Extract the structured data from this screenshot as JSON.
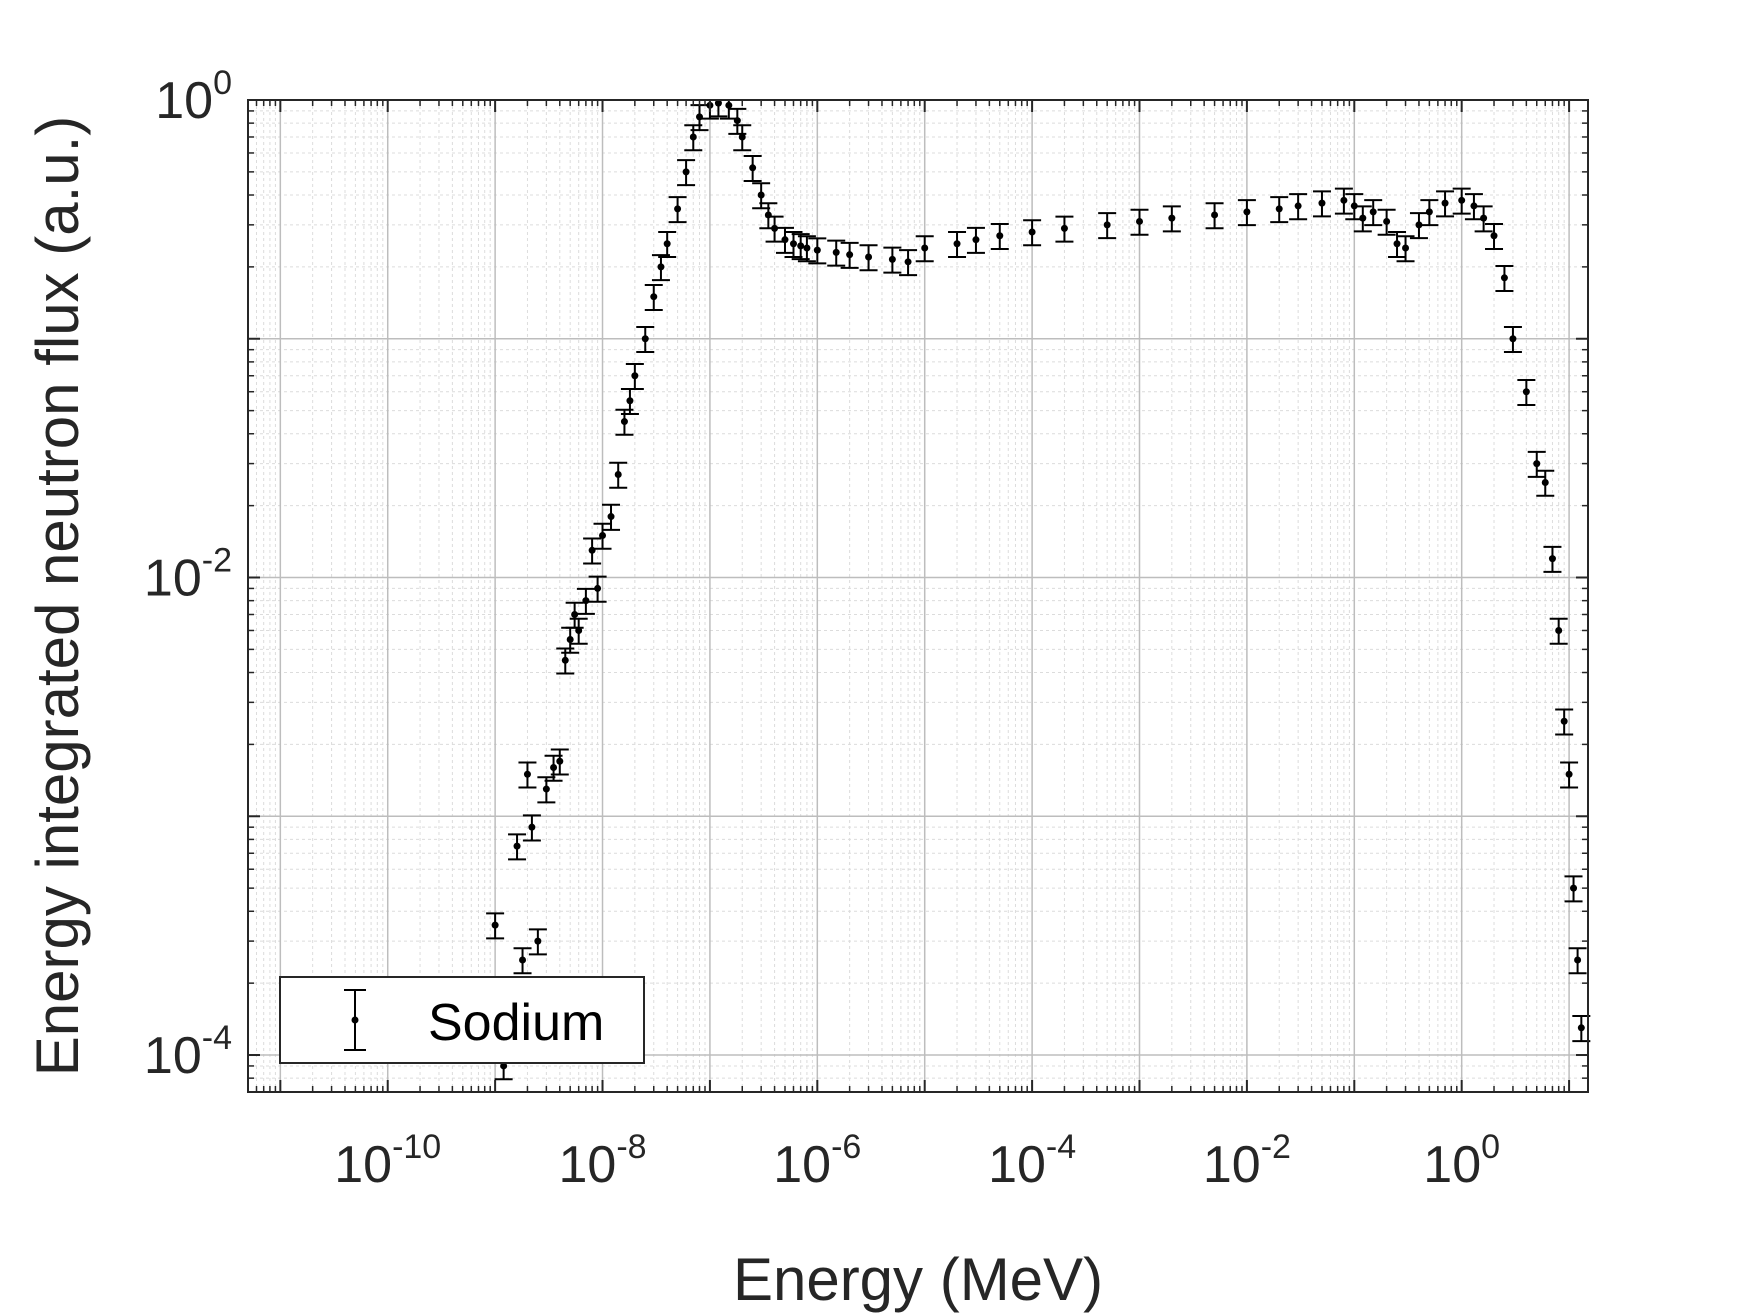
{
  "chart_data": {
    "type": "scatter",
    "xlabel": "Energy (MeV)",
    "ylabel": "Energy integrated neutron flux (a.u.)",
    "xscale": "log",
    "yscale": "log",
    "xlim": [
      5e-12,
      15
    ],
    "ylim": [
      7e-05,
      1
    ],
    "grid": true,
    "minor_grid": true,
    "legend_position": "bottom-left",
    "x_tick_labels": [
      {
        "base": "10",
        "exp": "-10",
        "value": 1e-10
      },
      {
        "base": "10",
        "exp": "-8",
        "value": 1e-08
      },
      {
        "base": "10",
        "exp": "-6",
        "value": 1e-06
      },
      {
        "base": "10",
        "exp": "-4",
        "value": 0.0001
      },
      {
        "base": "10",
        "exp": "-2",
        "value": 0.01
      },
      {
        "base": "10",
        "exp": "0",
        "value": 1
      }
    ],
    "y_tick_labels": [
      {
        "base": "10",
        "exp": "0",
        "value": 1
      },
      {
        "base": "10",
        "exp": "-2",
        "value": 0.01
      },
      {
        "base": "10",
        "exp": "-4",
        "value": 0.0001
      }
    ],
    "series": [
      {
        "name": "Sodium",
        "marker": "dot-with-errorbar",
        "color": "#000000",
        "x": [
          1e-09,
          1.2e-09,
          1.5e-09,
          1.6e-09,
          1.8e-09,
          2e-09,
          2.2e-09,
          2.5e-09,
          3e-09,
          3.5e-09,
          4e-09,
          4.5e-09,
          5e-09,
          5.5e-09,
          6e-09,
          7e-09,
          8e-09,
          9e-09,
          1e-08,
          1.2e-08,
          1.4e-08,
          1.6e-08,
          1.8e-08,
          2e-08,
          2.5e-08,
          3e-08,
          3.5e-08,
          4e-08,
          5e-08,
          6e-08,
          7e-08,
          8e-08,
          1e-07,
          1.2e-07,
          1.5e-07,
          1.8e-07,
          2e-07,
          2.5e-07,
          3e-07,
          3.5e-07,
          4e-07,
          5e-07,
          6e-07,
          7e-07,
          8e-07,
          1e-06,
          1.5e-06,
          2e-06,
          3e-06,
          5e-06,
          7e-06,
          1e-05,
          2e-05,
          3e-05,
          5e-05,
          0.0001,
          0.0002,
          0.0005,
          0.001,
          0.002,
          0.005,
          0.01,
          0.02,
          0.03,
          0.05,
          0.08,
          0.1,
          0.12,
          0.15,
          0.2,
          0.25,
          0.3,
          0.4,
          0.5,
          0.7,
          1.0,
          1.3,
          1.6,
          2.0,
          2.5,
          3.0,
          4.0,
          5.0,
          6.0,
          7.0,
          8.0,
          9.0,
          10.0,
          11.0,
          12.0,
          13.0
        ],
        "y": [
          0.00035,
          9e-05,
          0.00015,
          0.00075,
          0.00025,
          0.0015,
          0.0009,
          0.0003,
          0.0013,
          0.0016,
          0.0017,
          0.0045,
          0.0055,
          0.007,
          0.006,
          0.008,
          0.013,
          0.009,
          0.015,
          0.018,
          0.027,
          0.045,
          0.055,
          0.07,
          0.1,
          0.15,
          0.2,
          0.25,
          0.35,
          0.5,
          0.7,
          0.85,
          0.95,
          0.97,
          0.95,
          0.82,
          0.7,
          0.52,
          0.4,
          0.33,
          0.29,
          0.26,
          0.25,
          0.245,
          0.24,
          0.235,
          0.23,
          0.225,
          0.22,
          0.215,
          0.21,
          0.24,
          0.25,
          0.26,
          0.27,
          0.28,
          0.29,
          0.3,
          0.31,
          0.32,
          0.33,
          0.34,
          0.35,
          0.36,
          0.37,
          0.38,
          0.36,
          0.32,
          0.34,
          0.31,
          0.25,
          0.24,
          0.3,
          0.34,
          0.37,
          0.38,
          0.36,
          0.32,
          0.27,
          0.18,
          0.1,
          0.06,
          0.03,
          0.025,
          0.012,
          0.006,
          0.0025,
          0.0015,
          0.0005,
          0.00025,
          0.00013
        ],
        "y_err_frac": 0.12
      }
    ]
  }
}
